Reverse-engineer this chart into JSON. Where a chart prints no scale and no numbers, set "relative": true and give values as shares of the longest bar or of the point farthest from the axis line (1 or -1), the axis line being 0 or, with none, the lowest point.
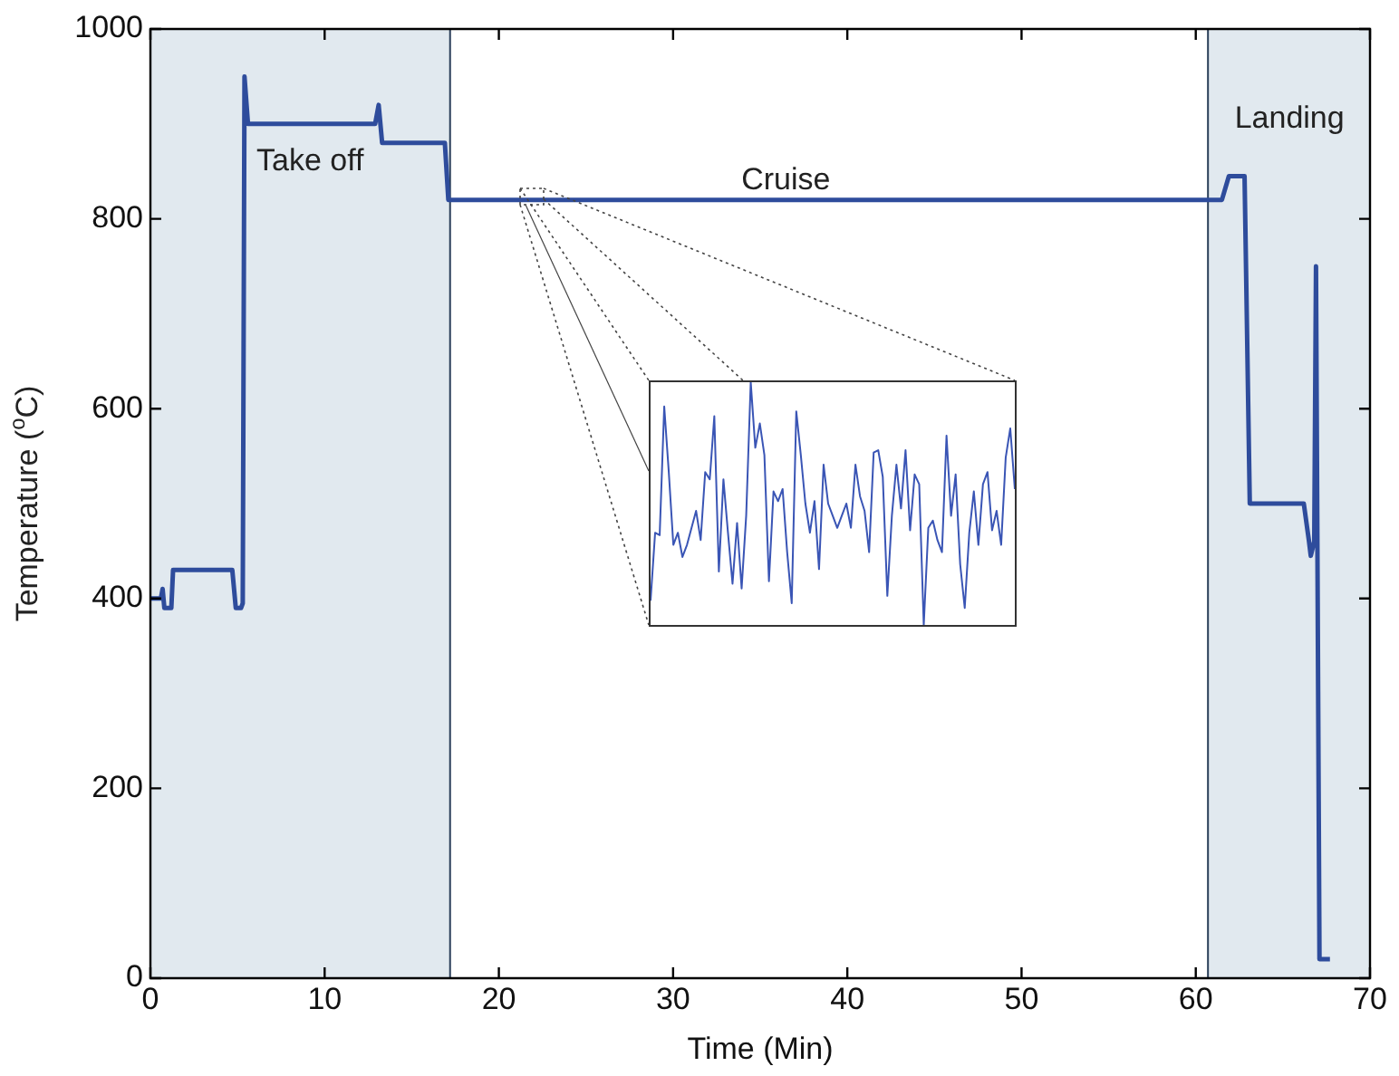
{
  "chart_data": [
    {
      "type": "line",
      "xlabel": "Time (Min)",
      "ylabel": "Temperature ($^{o}$C)",
      "x": [
        0,
        0.6,
        0.7,
        0.8,
        1.2,
        1.3,
        4.7,
        4.9,
        5.2,
        5.3,
        5.4,
        5.6,
        12.9,
        13.1,
        13.3,
        16.9,
        17.1,
        61.5,
        61.9,
        62.8,
        63.1,
        66.2,
        66.5,
        66.6,
        66.8,
        66.9,
        67.1,
        67.7
      ],
      "values": [
        400,
        400,
        410,
        390,
        390,
        430,
        430,
        390,
        390,
        395,
        950,
        900,
        900,
        920,
        880,
        880,
        820,
        820,
        845,
        845,
        500,
        500,
        460,
        445,
        460,
        750,
        20,
        20
      ],
      "color": "#2e4c9c",
      "xlim": [
        0,
        70
      ],
      "xticks": [
        0,
        10,
        20,
        30,
        40,
        50,
        60,
        70
      ],
      "ylim": [
        0,
        1000
      ],
      "yticks": [
        0,
        200,
        400,
        600,
        800,
        1000
      ],
      "bands": [
        {
          "axis": "x",
          "from": 0,
          "to": 17.2,
          "color": "#e1e9ef"
        },
        {
          "axis": "x",
          "from": 60.7,
          "to": 70,
          "color": "#e1e9ef"
        }
      ],
      "annotations": [
        "Take off",
        "Cruise",
        "Landing"
      ]
    },
    {
      "type": "line",
      "relative": true,
      "color": "#3a55b5",
      "categories": [
        null,
        null,
        null,
        null,
        null,
        null,
        null,
        null,
        null,
        null,
        null,
        null,
        null,
        null,
        null,
        null,
        null,
        null,
        null,
        null,
        null,
        null,
        null,
        null,
        null,
        null,
        null,
        null,
        null,
        null,
        null,
        null,
        null,
        null,
        null,
        null,
        null,
        null,
        null,
        null,
        null,
        null,
        null,
        null,
        null,
        null,
        null,
        null,
        null,
        null,
        null,
        null,
        null,
        null,
        null,
        null,
        null,
        null,
        null,
        null,
        null,
        null,
        null,
        null,
        null,
        null,
        null,
        null,
        null,
        null,
        null,
        null,
        null,
        null,
        null,
        null,
        null,
        null,
        null,
        null,
        null
      ],
      "values": [
        0.1,
        0.38,
        0.37,
        0.9,
        0.63,
        0.33,
        0.38,
        0.28,
        0.33,
        0.4,
        0.47,
        0.35,
        0.63,
        0.6,
        0.86,
        0.22,
        0.6,
        0.38,
        0.17,
        0.42,
        0.15,
        0.45,
        1.0,
        0.73,
        0.83,
        0.7,
        0.18,
        0.55,
        0.51,
        0.56,
        0.3,
        0.09,
        0.88,
        0.7,
        0.5,
        0.38,
        0.51,
        0.23,
        0.66,
        0.5,
        0.45,
        0.4,
        0.45,
        0.5,
        0.4,
        0.66,
        0.53,
        0.47,
        0.3,
        0.71,
        0.72,
        0.61,
        0.12,
        0.45,
        0.66,
        0.48,
        0.72,
        0.39,
        0.62,
        0.58,
        0.0,
        0.4,
        0.43,
        0.35,
        0.3,
        0.78,
        0.45,
        0.62,
        0.25,
        0.07,
        0.38,
        0.55,
        0.33,
        0.58,
        0.63,
        0.39,
        0.47,
        0.33,
        0.69,
        0.81,
        0.56
      ]
    }
  ]
}
